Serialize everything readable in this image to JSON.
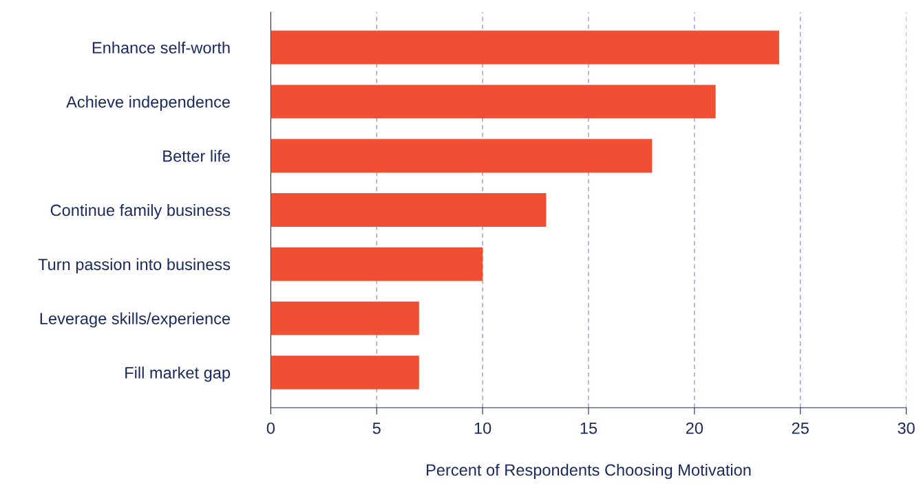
{
  "chart_data": {
    "type": "bar",
    "orientation": "horizontal",
    "categories": [
      "Enhance self-worth",
      "Achieve independence",
      "Better life",
      "Continue family business",
      "Turn passion into business",
      "Leverage skills/experience",
      "Fill market gap"
    ],
    "values": [
      24,
      21,
      18,
      13,
      10,
      7,
      7
    ],
    "color": "#f04f33",
    "xlabel": "Percent of Respondents Choosing Motivation",
    "xlim": [
      0,
      30
    ],
    "xticks": [
      0,
      5,
      10,
      15,
      20,
      25,
      30
    ],
    "grid": "x",
    "line_style": "dashed",
    "legend": false
  }
}
